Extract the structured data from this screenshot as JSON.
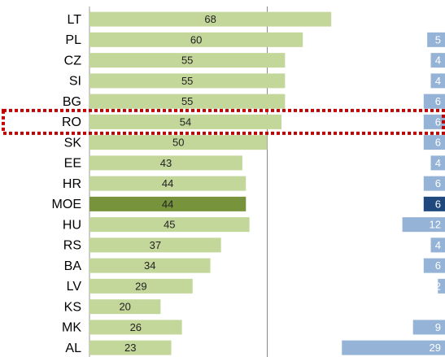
{
  "chart_data": {
    "type": "bar",
    "orientation": "horizontal",
    "categories": [
      "LT",
      "PL",
      "CZ",
      "SI",
      "BG",
      "RO",
      "SK",
      "EE",
      "HR",
      "MOE",
      "HU",
      "RS",
      "BA",
      "LV",
      "KS",
      "MK",
      "AL"
    ],
    "series": [
      {
        "values": [
          68,
          60,
          55,
          55,
          55,
          54,
          50,
          43,
          44,
          44,
          45,
          37,
          34,
          29,
          20,
          26,
          23
        ],
        "color": "#c4d79b",
        "colors": [
          "#c4d79b",
          "#c4d79b",
          "#c4d79b",
          "#c4d79b",
          "#c4d79b",
          "#c4d79b",
          "#c4d79b",
          "#c4d79b",
          "#c4d79b",
          "#77933c",
          "#c4d79b",
          "#c4d79b",
          "#c4d79b",
          "#c4d79b",
          "#c4d79b",
          "#c4d79b",
          "#c4d79b"
        ]
      },
      {
        "values": [
          null,
          5,
          4,
          4,
          6,
          6,
          6,
          4,
          6,
          6,
          12,
          4,
          6,
          2,
          null,
          9,
          29
        ],
        "color": "#95b3d7",
        "align": "right",
        "colors": [
          "#95b3d7",
          "#95b3d7",
          "#95b3d7",
          "#95b3d7",
          "#95b3d7",
          "#95b3d7",
          "#95b3d7",
          "#95b3d7",
          "#95b3d7",
          "#1f497d",
          "#95b3d7",
          "#95b3d7",
          "#95b3d7",
          "#95b3d7",
          "#95b3d7",
          "#95b3d7",
          "#95b3d7"
        ]
      }
    ],
    "xlim": [
      0,
      100
    ],
    "xticks": [
      0,
      50
    ],
    "grid": true,
    "highlight_category": "RO",
    "highlight_color": "#c00000"
  }
}
